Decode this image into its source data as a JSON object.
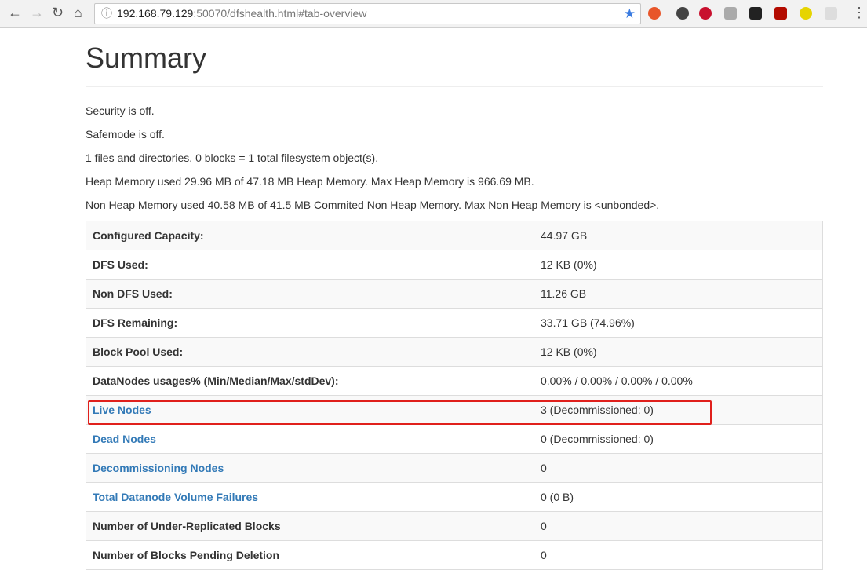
{
  "browser": {
    "url_host": "192.168.79.129",
    "url_rest": ":50070/dfshealth.html#tab-overview"
  },
  "page": {
    "title": "Summary",
    "lines": [
      "Security is off.",
      "Safemode is off.",
      "1 files and directories, 0 blocks = 1 total filesystem object(s).",
      "Heap Memory used 29.96 MB of 47.18 MB Heap Memory. Max Heap Memory is 966.69 MB.",
      "Non Heap Memory used 40.58 MB of 41.5 MB Commited Non Heap Memory. Max Non Heap Memory is <unbonded>."
    ]
  },
  "table": {
    "rows": [
      {
        "label": "Configured Capacity:",
        "value": "44.97 GB"
      },
      {
        "label": "DFS Used:",
        "value": "12 KB (0%)"
      },
      {
        "label": "Non DFS Used:",
        "value": "11.26 GB"
      },
      {
        "label": "DFS Remaining:",
        "value": "33.71 GB (74.96%)"
      },
      {
        "label": "Block Pool Used:",
        "value": "12 KB (0%)"
      },
      {
        "label": "DataNodes usages% (Min/Median/Max/stdDev):",
        "value": "0.00% / 0.00% / 0.00% / 0.00%"
      },
      {
        "label": "Live Nodes",
        "value": "3 (Decommissioned: 0)",
        "link": true
      },
      {
        "label": "Dead Nodes",
        "value": "0 (Decommissioned: 0)",
        "link": true
      },
      {
        "label": "Decommissioning Nodes",
        "value": "0",
        "link": true
      },
      {
        "label": "Total Datanode Volume Failures",
        "value": "0 (0 B)",
        "link": true
      },
      {
        "label": "Number of Under-Replicated Blocks",
        "value": "0"
      },
      {
        "label": "Number of Blocks Pending Deletion",
        "value": "0"
      }
    ]
  }
}
